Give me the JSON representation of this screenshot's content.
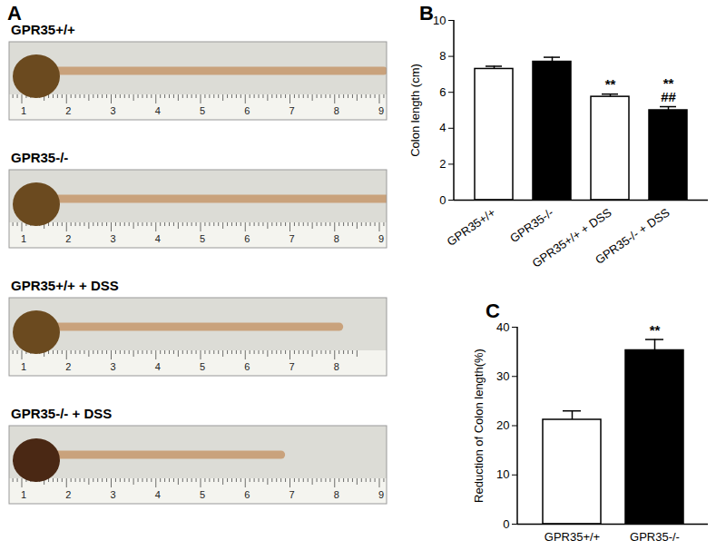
{
  "chart_data": [
    {
      "panel": "B",
      "type": "bar",
      "categories": [
        "GPR35+/+",
        "GPR35-/-",
        "GPR35+/+ + DSS",
        "GPR35-/- + DSS"
      ],
      "values": [
        7.3,
        7.7,
        5.75,
        5.0
      ],
      "errors": [
        0.15,
        0.25,
        0.15,
        0.2
      ],
      "colors": [
        "#ffffff",
        "#000000",
        "#ffffff",
        "#000000"
      ],
      "y_label": "Colon length (cm)",
      "ylim": [
        0,
        10
      ],
      "yticks": [
        0,
        2,
        4,
        6,
        8,
        10
      ],
      "annotations": [
        {
          "category": "GPR35+/+ + DSS",
          "text": "**"
        },
        {
          "category": "GPR35-/- + DSS",
          "text": "##"
        },
        {
          "category": "GPR35-/- + DSS",
          "text": "**"
        }
      ]
    },
    {
      "panel": "C",
      "type": "bar",
      "categories": [
        "GPR35+/+",
        "GPR35-/-"
      ],
      "values": [
        21.2,
        35.3
      ],
      "errors": [
        1.8,
        2.2
      ],
      "colors": [
        "#ffffff",
        "#000000"
      ],
      "y_label": "Reduction of Colon length(%)",
      "ylim": [
        0,
        40
      ],
      "yticks": [
        0,
        10,
        20,
        30,
        40
      ],
      "annotations": [
        {
          "category": "GPR35-/-",
          "text": "**"
        }
      ]
    }
  ],
  "photos": {
    "panel": "A",
    "images": [
      {
        "label": "GPR35+/+",
        "ruler_ticks": [
          1,
          2,
          3,
          4,
          5,
          6,
          7,
          8,
          9
        ],
        "colon_end": 9.1
      },
      {
        "label": "GPR35-/-",
        "ruler_ticks": [
          1,
          2,
          3,
          4,
          5,
          6,
          7,
          8,
          9
        ],
        "colon_end": 9.2
      },
      {
        "label": "GPR35+/+ + DSS",
        "ruler_ticks": [
          1,
          2,
          3,
          4,
          5,
          6,
          7,
          8
        ],
        "colon_end": 8.1
      },
      {
        "label": "GPR35-/- + DSS",
        "ruler_ticks": [
          1,
          2,
          3,
          4,
          5,
          6,
          7,
          8,
          9
        ],
        "colon_end": 6.8
      }
    ]
  }
}
